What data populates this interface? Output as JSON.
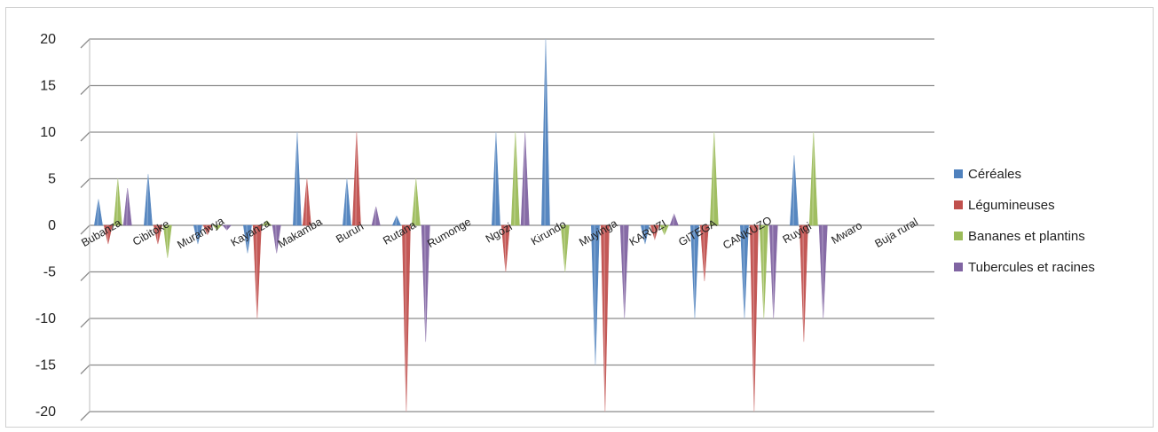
{
  "chart_data": {
    "type": "bar",
    "title": "",
    "xlabel": "",
    "ylabel": "",
    "ylim": [
      -20,
      20
    ],
    "yticks": [
      -20,
      -15,
      -10,
      -5,
      0,
      5,
      10,
      15,
      20
    ],
    "grid": true,
    "legend_position": "right",
    "categories": [
      "Bubanza",
      "Cibitoke",
      "Muramvya",
      "Kayanza",
      "Makamba",
      "Bururi",
      "Rutana",
      "Rumonge",
      "Ngozi",
      "Kirundo",
      "Muyinga",
      "KARUZI",
      "GITEGA",
      "CANKUZO",
      "Ruyigi",
      "Mwaro",
      "Buja rural"
    ],
    "series": [
      {
        "name": "Céréales",
        "color": "#4f81bd",
        "values": [
          2.8,
          5.5,
          -2,
          -3,
          10,
          5,
          1,
          0,
          10,
          20,
          -15,
          -2,
          -10,
          -10,
          7.5,
          0,
          0
        ]
      },
      {
        "name": "Légumineuses",
        "color": "#c0504d",
        "values": [
          -2,
          -2,
          -1,
          -10,
          5,
          10,
          -20,
          0,
          -5,
          0,
          -20,
          -1.5,
          -6,
          -20,
          -12.5,
          0,
          0
        ]
      },
      {
        "name": "Bananes et plantins",
        "color": "#9bbb59",
        "values": [
          5,
          -3.5,
          -0.5,
          0.5,
          0,
          0,
          5,
          0,
          10,
          -5,
          0,
          -1,
          10,
          -10,
          10,
          0,
          0
        ]
      },
      {
        "name": "Tubercules et racines",
        "color": "#8064a2",
        "values": [
          4,
          0,
          -0.5,
          -3,
          0,
          2,
          -12.5,
          0,
          10,
          0,
          -10,
          1.2,
          0,
          -10,
          -10,
          0,
          0
        ]
      }
    ]
  }
}
